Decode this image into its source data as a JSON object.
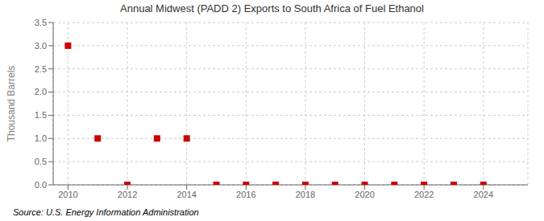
{
  "chart_data": {
    "type": "scatter",
    "title": "Annual Midwest (PADD 2) Exports to South Africa of Fuel Ethanol",
    "ylabel": "Thousand Barrels",
    "annotation": "Source: U.S. Energy Information Administration",
    "x": [
      2010,
      2011,
      2012,
      2013,
      2014,
      2015,
      2016,
      2017,
      2018,
      2019,
      2020,
      2021,
      2022,
      2023,
      2024
    ],
    "values": [
      3.0,
      1.0,
      0.0,
      1.0,
      1.0,
      0.0,
      0.0,
      0.0,
      0.0,
      0.0,
      0.0,
      0.0,
      0.0,
      0.0,
      0.0
    ],
    "color": "#cc0000",
    "marker": "square",
    "xlim": [
      2009.5,
      2025.5
    ],
    "xticks": [
      2010,
      2012,
      2014,
      2016,
      2018,
      2020,
      2022,
      2024
    ],
    "ylim": [
      0.0,
      3.5
    ],
    "yticks": [
      {
        "value": 0,
        "label": "0.0"
      },
      0.5,
      {
        "value": 1,
        "label": "1.0"
      },
      1.5,
      {
        "value": 2,
        "label": "2.0"
      },
      2.5,
      {
        "value": 3,
        "label": "3.0"
      },
      3.5
    ],
    "grid": true
  }
}
